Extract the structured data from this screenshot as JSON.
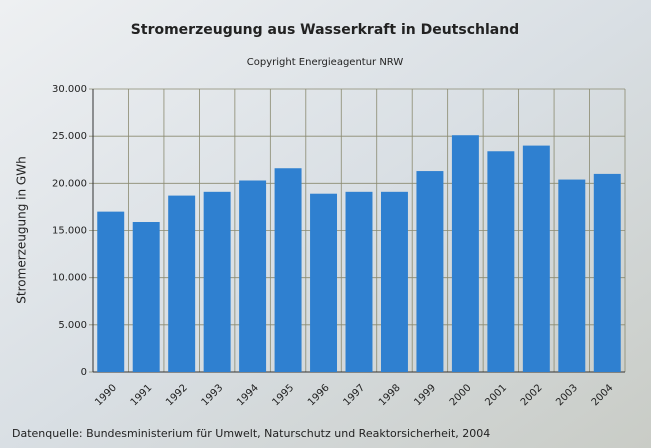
{
  "chart_data": {
    "type": "bar",
    "title": "Stromerzeugung aus Wasserkraft in Deutschland",
    "subtitle": "Copyright Energieagentur NRW",
    "y_label": "Stromerzeugung in GWh",
    "source": "Datenquelle: Bundesministerium für Umwelt, Naturschutz und Reaktorsicherheit, 2004",
    "categories": [
      "1990",
      "1991",
      "1992",
      "1993",
      "1994",
      "1995",
      "1996",
      "1997",
      "1998",
      "1999",
      "2000",
      "2001",
      "2002",
      "2003",
      "2004"
    ],
    "values": [
      17000,
      15900,
      18700,
      19100,
      20300,
      21600,
      18900,
      19100,
      19100,
      21300,
      25100,
      23400,
      24000,
      20400,
      21000
    ],
    "color": "#2f80d0",
    "ylim": [
      0,
      30000
    ],
    "yticks": [
      0,
      {
        "value": 5000,
        "label": "5.000"
      },
      {
        "value": 10000,
        "label": "10.000"
      },
      {
        "value": 15000,
        "label": "15.000"
      },
      {
        "value": 20000,
        "label": "20.000"
      },
      {
        "value": 25000,
        "label": "25.000"
      },
      {
        "value": 30000,
        "label": "30.000"
      }
    ],
    "grid": true
  }
}
